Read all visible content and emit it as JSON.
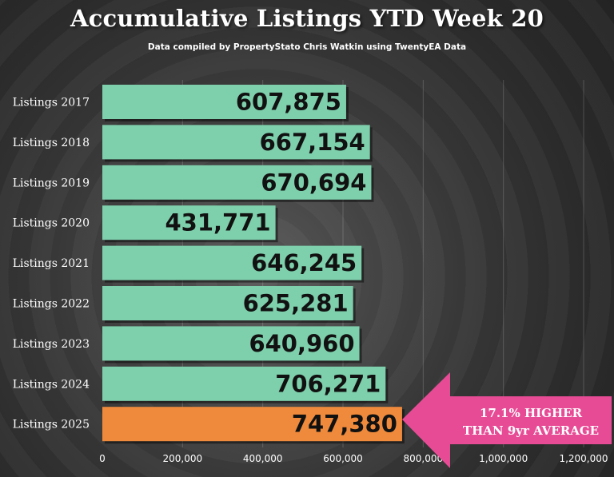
{
  "title": "Accumulative Listings YTD Week 20",
  "subtitle": "Data compiled by PropertyStato Chris Watkin using TwentyEA Data",
  "colors": {
    "bar": "#7ecfac",
    "highlight_bar": "#ef8a3c",
    "callout": "#e84b96",
    "text": "#ffffff",
    "value_text": "#111111"
  },
  "callout": {
    "line1": "17.1% HIGHER",
    "line2": "THAN 9yr AVERAGE"
  },
  "chart_data": {
    "type": "bar",
    "orientation": "horizontal",
    "title": "Accumulative Listings YTD Week 20",
    "subtitle": "Data compiled by PropertyStato Chris Watkin using TwentyEA Data",
    "categories": [
      "Listings 2017",
      "Listings 2018",
      "Listings 2019",
      "Listings 2020",
      "Listings 2021",
      "Listings 2022",
      "Listings 2023",
      "Listings 2024",
      "Listings 2025"
    ],
    "values": [
      607875,
      667154,
      670694,
      431771,
      646245,
      625281,
      640960,
      706271,
      747380
    ],
    "value_labels": [
      "607,875",
      "667,154",
      "670,694",
      "431,771",
      "646,245",
      "625,281",
      "640,960",
      "706,271",
      "747,380"
    ],
    "highlight_index": 8,
    "xlim": [
      0,
      1200000
    ],
    "xticks": [
      0,
      200000,
      400000,
      600000,
      800000,
      1000000,
      1200000
    ],
    "xtick_labels": [
      "0",
      "200,000",
      "400,000",
      "600,000",
      "800,000",
      "1,000,000",
      "1,200,000"
    ],
    "grid": true,
    "legend": "none"
  }
}
